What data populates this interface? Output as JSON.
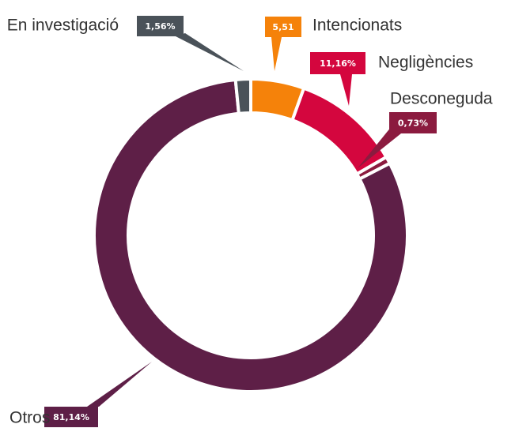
{
  "chart_data": {
    "type": "donut",
    "categories": [
      "Intencionats",
      "Negligències",
      "Desconeguda",
      "Otros",
      "En investigació"
    ],
    "values": [
      5.51,
      11.16,
      0.73,
      81.14,
      1.56
    ],
    "value_labels": [
      "5,51",
      "11,16%",
      "0,73%",
      "81,14%",
      "1,56%"
    ],
    "colors": [
      "#f5820a",
      "#d4063e",
      "#8b1b3f",
      "#5e1f47",
      "#4a5259"
    ]
  }
}
